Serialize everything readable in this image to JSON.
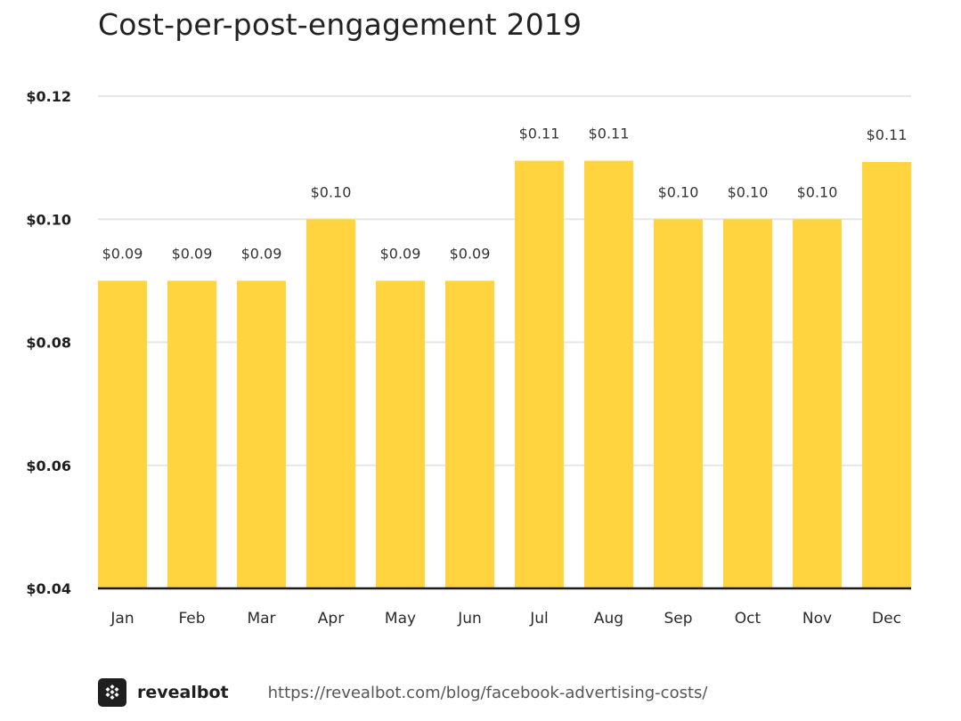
{
  "chart_data": {
    "type": "bar",
    "title": "Cost-per-post-engagement 2019",
    "categories": [
      "Jan",
      "Feb",
      "Mar",
      "Apr",
      "May",
      "Jun",
      "Jul",
      "Aug",
      "Sep",
      "Oct",
      "Nov",
      "Dec"
    ],
    "values": [
      0.09,
      0.09,
      0.09,
      0.1,
      0.09,
      0.09,
      0.1095,
      0.1095,
      0.1,
      0.1,
      0.1,
      0.1093
    ],
    "data_labels": [
      "$0.09",
      "$0.09",
      "$0.09",
      "$0.10",
      "$0.09",
      "$0.09",
      "$0.11",
      "$0.11",
      "$0.10",
      "$0.10",
      "$0.10",
      "$0.11"
    ],
    "ylim": [
      0.04,
      0.12
    ],
    "yticks": [
      0.04,
      0.06,
      0.08,
      0.1,
      0.12
    ],
    "ytick_labels": [
      "$0.04",
      "$0.06",
      "$0.08",
      "$0.10",
      "$0.12"
    ],
    "xlabel": "",
    "ylabel": "",
    "grid": true,
    "bar_color": "#FFD43F",
    "grid_color": "#E6E6E6",
    "baseline_color": "#1A1A1A"
  },
  "footer": {
    "brand": "revealbot",
    "logo_icon": "revealbot-logo-icon",
    "source_url": "https://revealbot.com/blog/facebook-advertising-costs/"
  }
}
